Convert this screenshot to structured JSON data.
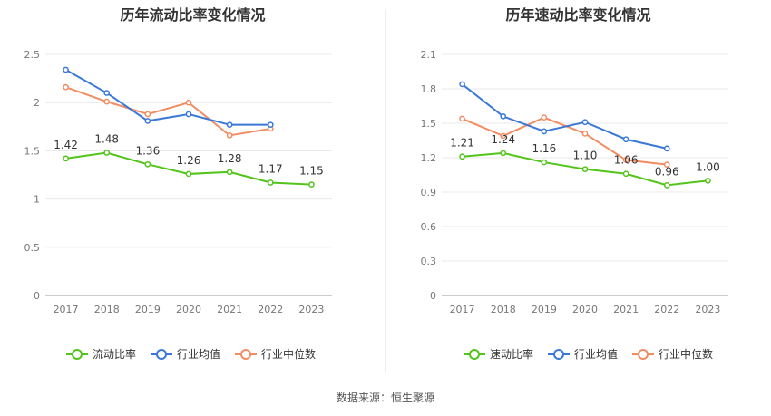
{
  "source_text": "数据来源：恒生聚源",
  "chart_data": [
    {
      "type": "line",
      "title": "历年流动比率变化情况",
      "categories": [
        "2017",
        "2018",
        "2019",
        "2020",
        "2021",
        "2022",
        "2023"
      ],
      "ylim": [
        0,
        2.5
      ],
      "yticks": [
        "0",
        "0.5",
        "1",
        "1.5",
        "2",
        "2.5"
      ],
      "grid": true,
      "legend_position": "bottom",
      "series": [
        {
          "name": "流动比率",
          "color": "#52c41a",
          "values": [
            1.42,
            1.48,
            1.36,
            1.26,
            1.28,
            1.17,
            1.15
          ],
          "labels": [
            "1.42",
            "1.48",
            "1.36",
            "1.26",
            "1.28",
            "1.17",
            "1.15"
          ]
        },
        {
          "name": "行业均值",
          "color": "#3a78d8",
          "values": [
            2.34,
            2.1,
            1.81,
            1.88,
            1.77,
            1.77,
            null
          ]
        },
        {
          "name": "行业中位数",
          "color": "#f28c62",
          "values": [
            2.16,
            2.01,
            1.88,
            2.0,
            1.66,
            1.73,
            null
          ]
        }
      ]
    },
    {
      "type": "line",
      "title": "历年速动比率变化情况",
      "categories": [
        "2017",
        "2018",
        "2019",
        "2020",
        "2021",
        "2022",
        "2023"
      ],
      "ylim": [
        0,
        2.1
      ],
      "yticks": [
        "0",
        "0.3",
        "0.6",
        "0.9",
        "1.2",
        "1.5",
        "1.8",
        "2.1"
      ],
      "grid": true,
      "legend_position": "bottom",
      "series": [
        {
          "name": "速动比率",
          "color": "#52c41a",
          "values": [
            1.21,
            1.24,
            1.16,
            1.1,
            1.06,
            0.96,
            1.0
          ],
          "labels": [
            "1.21",
            "1.24",
            "1.16",
            "1.10",
            "1.06",
            "0.96",
            "1.00"
          ]
        },
        {
          "name": "行业均值",
          "color": "#3a78d8",
          "values": [
            1.84,
            1.56,
            1.43,
            1.51,
            1.36,
            1.28,
            null
          ]
        },
        {
          "name": "行业中位数",
          "color": "#f28c62",
          "values": [
            1.54,
            1.39,
            1.55,
            1.41,
            1.18,
            1.14,
            null
          ]
        }
      ]
    }
  ]
}
